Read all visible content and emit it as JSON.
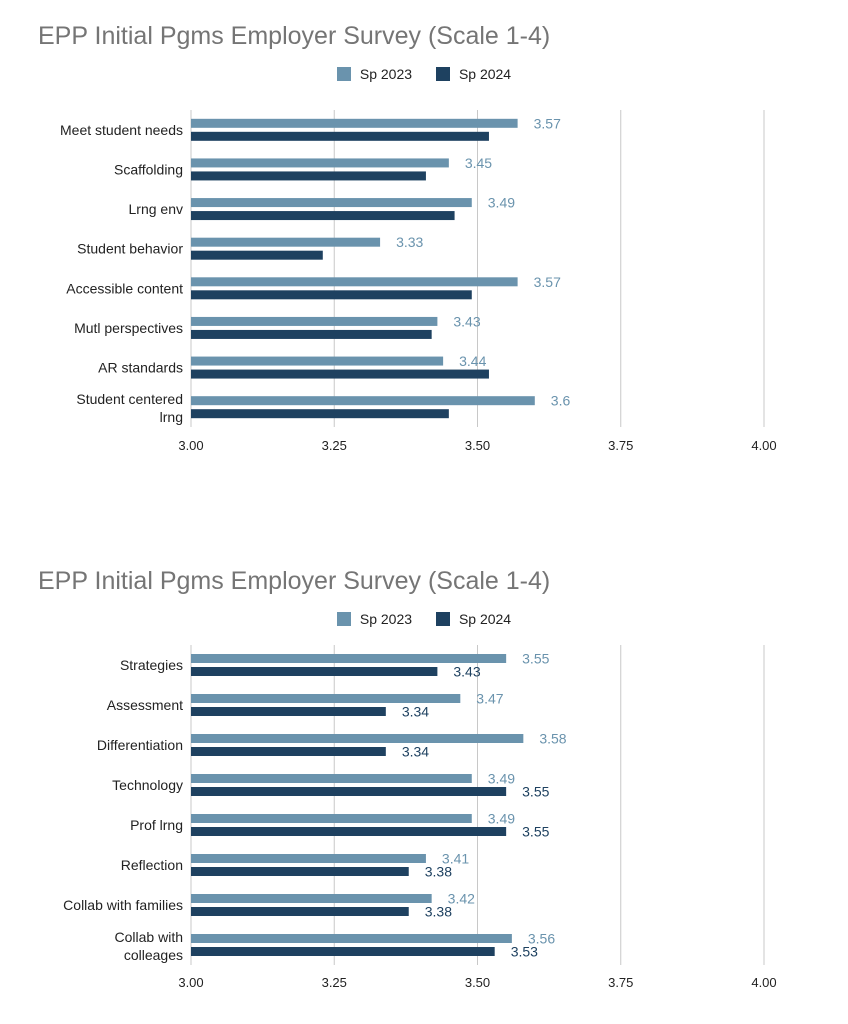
{
  "colors": {
    "sp2023": "#6a93ad",
    "sp2024": "#1e4160",
    "grid": "#c8c8c8",
    "title": "#757575"
  },
  "chart_data": [
    {
      "type": "bar",
      "orientation": "horizontal",
      "title": "EPP Initial Pgms Employer Survey (Scale 1-4)",
      "xlim": [
        3.0,
        4.0
      ],
      "x_ticks": [
        "3.00",
        "3.25",
        "3.50",
        "3.75",
        "4.00"
      ],
      "legend_position": "top",
      "grid": true,
      "categories": [
        "Meet student needs",
        "Scaffolding",
        "Lrng env",
        "Student behavior",
        "Accessible content",
        "Mutl perspectives",
        "AR standards",
        "Student centered lrng"
      ],
      "series": [
        {
          "name": "Sp 2023",
          "values": [
            3.57,
            3.45,
            3.49,
            3.33,
            3.57,
            3.43,
            3.44,
            3.6
          ],
          "labels": [
            "3.57",
            "3.45",
            "3.49",
            "3.33",
            "3.57",
            "3.43",
            "3.44",
            "3.6"
          ]
        },
        {
          "name": "Sp 2024",
          "values": [
            3.52,
            3.41,
            3.46,
            3.23,
            3.49,
            3.42,
            3.52,
            3.45
          ],
          "labels": []
        }
      ]
    },
    {
      "type": "bar",
      "orientation": "horizontal",
      "title": "EPP Initial Pgms Employer Survey (Scale 1-4)",
      "xlim": [
        3.0,
        4.0
      ],
      "x_ticks": [
        "3.00",
        "3.25",
        "3.50",
        "3.75",
        "4.00"
      ],
      "legend_position": "top",
      "grid": true,
      "categories": [
        "Strategies",
        "Assessment",
        "Differentiation",
        "Technology",
        "Prof lrng",
        "Reflection",
        "Collab with families",
        "Collab with colleages"
      ],
      "series": [
        {
          "name": "Sp 2023",
          "values": [
            3.55,
            3.47,
            3.58,
            3.49,
            3.49,
            3.41,
            3.42,
            3.56
          ],
          "labels": [
            "3.55",
            "3.47",
            "3.58",
            "3.49",
            "3.49",
            "3.41",
            "3.42",
            "3.56"
          ]
        },
        {
          "name": "Sp 2024",
          "values": [
            3.43,
            3.34,
            3.34,
            3.55,
            3.55,
            3.38,
            3.38,
            3.53
          ],
          "labels": [
            "3.43",
            "3.34",
            "3.34",
            "3.55",
            "3.55",
            "3.38",
            "3.38",
            "3.53"
          ]
        }
      ]
    }
  ]
}
